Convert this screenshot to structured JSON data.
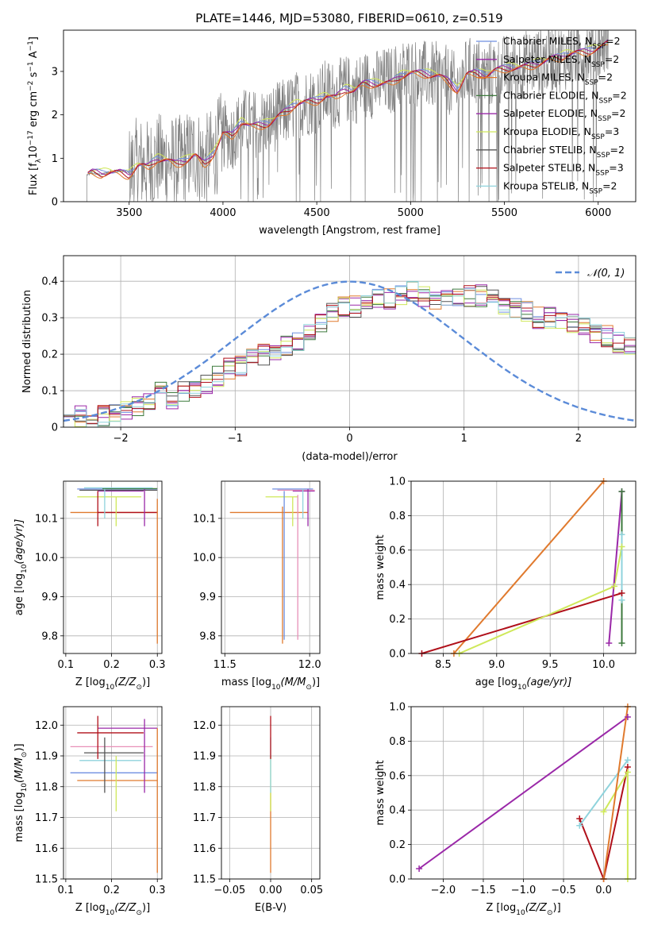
{
  "figure_title": "PLATE=1446, MJD=53080, FIBERID=0610, z=0.519",
  "colors": {
    "chabrier_miles": "#6f8fe0",
    "salpeter_miles": "#9a28a8",
    "kroupa_miles": "#e07a2e",
    "chabrier_elodie": "#3d7a3d",
    "salpeter_elodie": "#9a28a8",
    "kroupa_elodie": "#cfe85a",
    "chabrier_stelib": "#555555",
    "salpeter_stelib": "#b0101a",
    "kroupa_stelib": "#8fd3dc",
    "pink": "#e890b8",
    "spectrum": "#808080",
    "gaussian": "#5b8bd8",
    "grid": "#b0b0b0"
  },
  "chart_data": [
    {
      "id": "spectrum",
      "type": "line",
      "title": "PLATE=1446, MJD=53080, FIBERID=0610, z=0.519",
      "xlabel": "wavelength [Angstrom, rest frame]",
      "ylabel": "Flux [f",
      "ylabel_sub": "λ",
      "ylabel_rest": "10",
      "ylabel_exp": "−17",
      "ylabel_units": " erg cm",
      "ylabel_units_exp": "−2",
      "ylabel_s": " s",
      "ylabel_s_exp": "−1",
      "ylabel_A": " A",
      "ylabel_A_exp": "−1",
      "ylabel_close": "]",
      "xlim": [
        3150,
        6200
      ],
      "ylim": [
        0,
        3.95
      ],
      "xticks": [
        3500,
        4000,
        4500,
        5000,
        5500,
        6000
      ],
      "yticks": [
        0,
        1,
        2,
        3
      ],
      "grid": false,
      "continuum": {
        "x": [
          3280,
          3300,
          3350,
          3400,
          3450,
          3500,
          3550,
          3600,
          3650,
          3700,
          3750,
          3800,
          3850,
          3900,
          3950,
          4000,
          4050,
          4100,
          4150,
          4200,
          4250,
          4300,
          4350,
          4400,
          4450,
          4500,
          4550,
          4600,
          4650,
          4700,
          4750,
          4800,
          4850,
          4900,
          4950,
          5000,
          5050,
          5100,
          5150,
          5200,
          5250,
          5300,
          5350,
          5400,
          5450,
          5500,
          5550,
          5600,
          5650,
          5700,
          5750,
          5800,
          5850,
          5900,
          5950,
          6000,
          6050
        ],
        "y": [
          0.62,
          0.66,
          0.62,
          0.7,
          0.72,
          0.66,
          0.9,
          0.8,
          0.96,
          0.95,
          0.88,
          0.98,
          1.15,
          0.9,
          1.1,
          1.55,
          1.5,
          1.85,
          1.78,
          1.82,
          1.85,
          2.0,
          2.1,
          2.25,
          2.3,
          2.35,
          2.5,
          2.45,
          2.6,
          2.55,
          2.7,
          2.7,
          2.75,
          2.8,
          2.95,
          3.0,
          2.95,
          2.9,
          2.9,
          2.8,
          2.6,
          3.0,
          3.0,
          2.9,
          3.0,
          3.05,
          3.1,
          3.15,
          3.2,
          3.25,
          3.3,
          3.3,
          3.4,
          3.45,
          3.5,
          3.6,
          3.7
        ]
      },
      "legend_placement": "right",
      "legend": [
        {
          "label": "Chabrier MILES, N",
          "sub": "SSP",
          "rest": "=2",
          "color_key": "chabrier_miles"
        },
        {
          "label": "Salpeter MILES, N",
          "sub": "SSP",
          "rest": "=2",
          "color_key": "salpeter_miles"
        },
        {
          "label": "Kroupa MILES, N",
          "sub": "SSP",
          "rest": "=2",
          "color_key": "kroupa_miles"
        },
        {
          "label": "Chabrier ELODIE, N",
          "sub": "SSP",
          "rest": "=2",
          "color_key": "chabrier_elodie"
        },
        {
          "label": "Salpeter ELODIE, N",
          "sub": "SSP",
          "rest": "=2",
          "color_key": "salpeter_elodie"
        },
        {
          "label": "Kroupa ELODIE, N",
          "sub": "SSP",
          "rest": "=3",
          "color_key": "kroupa_elodie"
        },
        {
          "label": "Chabrier STELIB, N",
          "sub": "SSP",
          "rest": "=2",
          "color_key": "chabrier_stelib"
        },
        {
          "label": "Salpeter STELIB, N",
          "sub": "SSP",
          "rest": "=3",
          "color_key": "salpeter_stelib"
        },
        {
          "label": "Kroupa STELIB, N",
          "sub": "SSP",
          "rest": "=2",
          "color_key": "kroupa_stelib"
        }
      ]
    },
    {
      "id": "residuals",
      "type": "line",
      "xlabel": "(data-model)/error",
      "ylabel": "Normed distribution",
      "xlim": [
        -2.5,
        2.5
      ],
      "ylim": [
        0,
        0.47
      ],
      "xticks": [
        -2,
        -1,
        0,
        1,
        2
      ],
      "yticks": [
        0.0,
        0.1,
        0.2,
        0.3,
        0.4
      ],
      "grid": true,
      "gaussian_legend": "𝒩(0, 1)",
      "bin_edges_start": -2.5,
      "bin_width": 0.1,
      "hist_base": [
        0.035,
        0.03,
        0.02,
        0.03,
        0.04,
        0.04,
        0.06,
        0.07,
        0.1,
        0.08,
        0.1,
        0.11,
        0.12,
        0.14,
        0.16,
        0.17,
        0.19,
        0.2,
        0.21,
        0.22,
        0.23,
        0.26,
        0.28,
        0.31,
        0.33,
        0.33,
        0.34,
        0.35,
        0.35,
        0.36,
        0.37,
        0.36,
        0.35,
        0.35,
        0.35,
        0.36,
        0.36,
        0.35,
        0.34,
        0.33,
        0.32,
        0.3,
        0.3,
        0.29,
        0.28,
        0.27,
        0.26,
        0.25,
        0.23,
        0.22,
        0.21
      ],
      "series_color_keys": [
        "chabrier_miles",
        "salpeter_miles",
        "kroupa_miles",
        "chabrier_elodie",
        "salpeter_elodie",
        "kroupa_elodie",
        "chabrier_stelib",
        "salpeter_stelib",
        "kroupa_stelib"
      ]
    },
    {
      "id": "age_vs_Z",
      "type": "scatter",
      "xlabel": "Z [log",
      "xlabel_sub": "10",
      "xlabel_rest": "(Z/Z",
      "xlabel_sun": "⊙",
      "xlabel_close": ")]",
      "ylabel": "age  [log",
      "ylabel_sub": "10",
      "ylabel_rest": "(age/yr)]",
      "xlim": [
        0.095,
        0.31
      ],
      "ylim": [
        9.755,
        10.195
      ],
      "xticks": [
        0.1,
        0.2,
        0.3
      ],
      "yticks": [
        9.8,
        9.9,
        10.0,
        10.1
      ],
      "grid": true,
      "hlines": [
        {
          "y": 10.175,
          "x0": 0.125,
          "x1": 0.3,
          "color_key": "chabrier_miles"
        },
        {
          "y": 10.17,
          "x0": 0.17,
          "x1": 0.27,
          "color_key": "salpeter_miles"
        },
        {
          "y": 10.115,
          "x0": 0.11,
          "x1": 0.3,
          "color_key": "kroupa_miles"
        },
        {
          "y": 10.176,
          "x0": 0.18,
          "x1": 0.3,
          "color_key": "chabrier_elodie"
        },
        {
          "y": 10.155,
          "x0": 0.125,
          "x1": 0.265,
          "color_key": "kroupa_elodie"
        },
        {
          "y": 10.172,
          "x0": 0.13,
          "x1": 0.3,
          "color_key": "chabrier_stelib"
        },
        {
          "y": 10.115,
          "x0": 0.17,
          "x1": 0.3,
          "color_key": "salpeter_stelib"
        },
        {
          "y": 10.178,
          "x0": 0.14,
          "x1": 0.29,
          "color_key": "kroupa_stelib"
        }
      ],
      "vlines": [
        {
          "x": 0.3,
          "y0": 9.78,
          "y1": 10.15,
          "color_key": "kroupa_miles"
        },
        {
          "x": 0.272,
          "y0": 10.08,
          "y1": 10.175,
          "color_key": "salpeter_miles"
        },
        {
          "x": 0.17,
          "y0": 10.08,
          "y1": 10.17,
          "color_key": "salpeter_stelib"
        },
        {
          "x": 0.21,
          "y0": 10.08,
          "y1": 10.155,
          "color_key": "kroupa_elodie"
        },
        {
          "x": 0.185,
          "y0": 10.1,
          "y1": 10.175,
          "color_key": "kroupa_stelib"
        }
      ]
    },
    {
      "id": "age_vs_mass",
      "type": "scatter",
      "xlabel": "mass [log",
      "xlabel_sub": "10",
      "xlabel_rest": "(M/M",
      "xlabel_sun": "⊙",
      "xlabel_close": ")]",
      "xlim": [
        11.48,
        12.06
      ],
      "ylim": [
        9.755,
        10.195
      ],
      "xticks": [
        11.5,
        12.0
      ],
      "yticks": [
        9.8,
        9.9,
        10.0,
        10.1
      ],
      "grid": true,
      "hlines": [
        {
          "y": 10.115,
          "x0": 11.53,
          "x1": 11.99,
          "color_key": "kroupa_miles"
        },
        {
          "y": 10.175,
          "x0": 11.78,
          "x1": 12.02,
          "color_key": "chabrier_miles"
        },
        {
          "y": 10.17,
          "x0": 11.9,
          "x1": 12.03,
          "color_key": "salpeter_miles"
        },
        {
          "y": 10.155,
          "x0": 11.74,
          "x1": 11.93,
          "color_key": "kroupa_elodie"
        },
        {
          "y": 10.172,
          "x0": 11.81,
          "x1": 12.03,
          "color_key": "pink"
        }
      ],
      "vlines": [
        {
          "x": 11.84,
          "y0": 9.78,
          "y1": 10.13,
          "color_key": "kroupa_miles"
        },
        {
          "x": 11.85,
          "y0": 9.79,
          "y1": 10.17,
          "color_key": "chabrier_miles"
        },
        {
          "x": 11.93,
          "y0": 9.79,
          "y1": 10.16,
          "color_key": "pink"
        },
        {
          "x": 11.99,
          "y0": 10.08,
          "y1": 10.175,
          "color_key": "salpeter_miles"
        },
        {
          "x": 11.96,
          "y0": 10.1,
          "y1": 10.175,
          "color_key": "kroupa_stelib"
        },
        {
          "x": 11.9,
          "y0": 10.08,
          "y1": 10.155,
          "color_key": "kroupa_elodie"
        }
      ]
    },
    {
      "id": "weight_vs_age",
      "type": "line",
      "xlabel": "age  [log",
      "xlabel_sub": "10",
      "xlabel_rest": "(age/yr)]",
      "ylabel": "mass weight",
      "xlim": [
        8.2,
        10.3
      ],
      "ylim": [
        0,
        1.0
      ],
      "xticks": [
        8.5,
        9.0,
        9.5,
        10.0
      ],
      "yticks": [
        0.0,
        0.2,
        0.4,
        0.6,
        0.8,
        1.0
      ],
      "grid": true,
      "series": [
        {
          "color_key": "kroupa_miles",
          "x": [
            8.6,
            10.0
          ],
          "y": [
            0.0,
            1.0
          ]
        },
        {
          "color_key": "salpeter_stelib",
          "x": [
            8.3,
            10.17
          ],
          "y": [
            0.0,
            0.35
          ]
        },
        {
          "color_key": "kroupa_elodie",
          "x": [
            8.65,
            10.1,
            10.17
          ],
          "y": [
            0.0,
            0.39,
            0.62
          ]
        },
        {
          "color_key": "salpeter_miles",
          "x": [
            10.05,
            10.17
          ],
          "y": [
            0.06,
            0.94
          ]
        },
        {
          "color_key": "chabrier_elodie",
          "x": [
            10.17,
            10.17
          ],
          "y": [
            0.06,
            0.94
          ]
        },
        {
          "color_key": "kroupa_stelib",
          "x": [
            10.17,
            10.17
          ],
          "y": [
            0.31,
            0.69
          ]
        }
      ]
    },
    {
      "id": "mass_vs_Z",
      "type": "scatter",
      "xlabel": "Z [log",
      "xlabel_sub": "10",
      "xlabel_rest": "(Z/Z",
      "xlabel_sun": "⊙",
      "xlabel_close": ")]",
      "ylabel": "mass [log",
      "ylabel_sub": "10",
      "ylabel_rest": "(M/M",
      "ylabel_sun": "⊙",
      "ylabel_close": ")]",
      "xlim": [
        0.095,
        0.31
      ],
      "ylim": [
        11.5,
        12.06
      ],
      "xticks": [
        0.1,
        0.2,
        0.3
      ],
      "yticks": [
        11.5,
        11.6,
        11.7,
        11.8,
        11.9,
        12.0
      ],
      "grid": true,
      "hlines": [
        {
          "y": 11.99,
          "x0": 0.17,
          "x1": 0.3,
          "color_key": "salpeter_miles"
        },
        {
          "y": 11.975,
          "x0": 0.125,
          "x1": 0.27,
          "color_key": "salpeter_stelib"
        },
        {
          "y": 11.93,
          "x0": 0.11,
          "x1": 0.29,
          "color_key": "pink"
        },
        {
          "y": 11.91,
          "x0": 0.14,
          "x1": 0.27,
          "color_key": "chabrier_stelib"
        },
        {
          "y": 11.885,
          "x0": 0.13,
          "x1": 0.265,
          "color_key": "kroupa_stelib"
        },
        {
          "y": 11.845,
          "x0": 0.11,
          "x1": 0.3,
          "color_key": "chabrier_miles"
        },
        {
          "y": 11.82,
          "x0": 0.125,
          "x1": 0.3,
          "color_key": "kroupa_miles"
        }
      ],
      "vlines": [
        {
          "x": 0.17,
          "y0": 11.89,
          "y1": 12.03,
          "color_key": "salpeter_stelib"
        },
        {
          "x": 0.185,
          "y0": 11.78,
          "y1": 11.96,
          "color_key": "chabrier_stelib"
        },
        {
          "x": 0.21,
          "y0": 11.72,
          "y1": 11.9,
          "color_key": "kroupa_elodie"
        },
        {
          "x": 0.272,
          "y0": 11.78,
          "y1": 12.02,
          "color_key": "salpeter_miles"
        },
        {
          "x": 0.3,
          "y0": 11.52,
          "y1": 11.99,
          "color_key": "kroupa_miles"
        }
      ]
    },
    {
      "id": "mass_vs_ebv",
      "type": "scatter",
      "xlabel": "E(B-V)",
      "xlim": [
        -0.06,
        0.06
      ],
      "ylim": [
        11.5,
        12.06
      ],
      "xticks": [
        -0.05,
        0.0,
        0.05
      ],
      "yticks": [
        11.5,
        11.6,
        11.7,
        11.8,
        11.9,
        12.0
      ],
      "grid": true,
      "vlines": [
        {
          "x": 0.0,
          "y0": 11.52,
          "y1": 11.78,
          "color_key": "kroupa_miles"
        },
        {
          "x": 0.0,
          "y0": 11.72,
          "y1": 11.9,
          "color_key": "kroupa_elodie"
        },
        {
          "x": 0.0,
          "y0": 11.78,
          "y1": 11.96,
          "color_key": "kroupa_stelib"
        },
        {
          "x": 0.0,
          "y0": 11.89,
          "y1": 12.03,
          "color_key": "salpeter_stelib"
        }
      ]
    },
    {
      "id": "weight_vs_Z",
      "type": "line",
      "xlabel": "Z [log",
      "xlabel_sub": "10",
      "xlabel_rest": "(Z/Z",
      "xlabel_sun": "⊙",
      "xlabel_close": ")]",
      "ylabel": "mass weight",
      "xlim": [
        -2.4,
        0.4
      ],
      "ylim": [
        0,
        1.0
      ],
      "xticks": [
        -2.0,
        -1.5,
        -1.0,
        -0.5,
        0.0
      ],
      "yticks": [
        0.0,
        0.2,
        0.4,
        0.6,
        0.8,
        1.0
      ],
      "grid": true,
      "series": [
        {
          "color_key": "salpeter_miles",
          "x": [
            -2.3,
            0.3
          ],
          "y": [
            0.06,
            0.94
          ]
        },
        {
          "color_key": "salpeter_stelib",
          "x": [
            -0.3,
            0.0,
            0.3
          ],
          "y": [
            0.35,
            0.0,
            0.65
          ]
        },
        {
          "color_key": "kroupa_stelib",
          "x": [
            -0.3,
            0.3
          ],
          "y": [
            0.31,
            0.69
          ]
        },
        {
          "color_key": "kroupa_elodie",
          "x": [
            0.0,
            0.3,
            0.3
          ],
          "y": [
            0.39,
            0.62,
            0.0
          ]
        },
        {
          "color_key": "kroupa_miles",
          "x": [
            0.0,
            0.3
          ],
          "y": [
            0.0,
            1.0
          ]
        }
      ]
    }
  ]
}
